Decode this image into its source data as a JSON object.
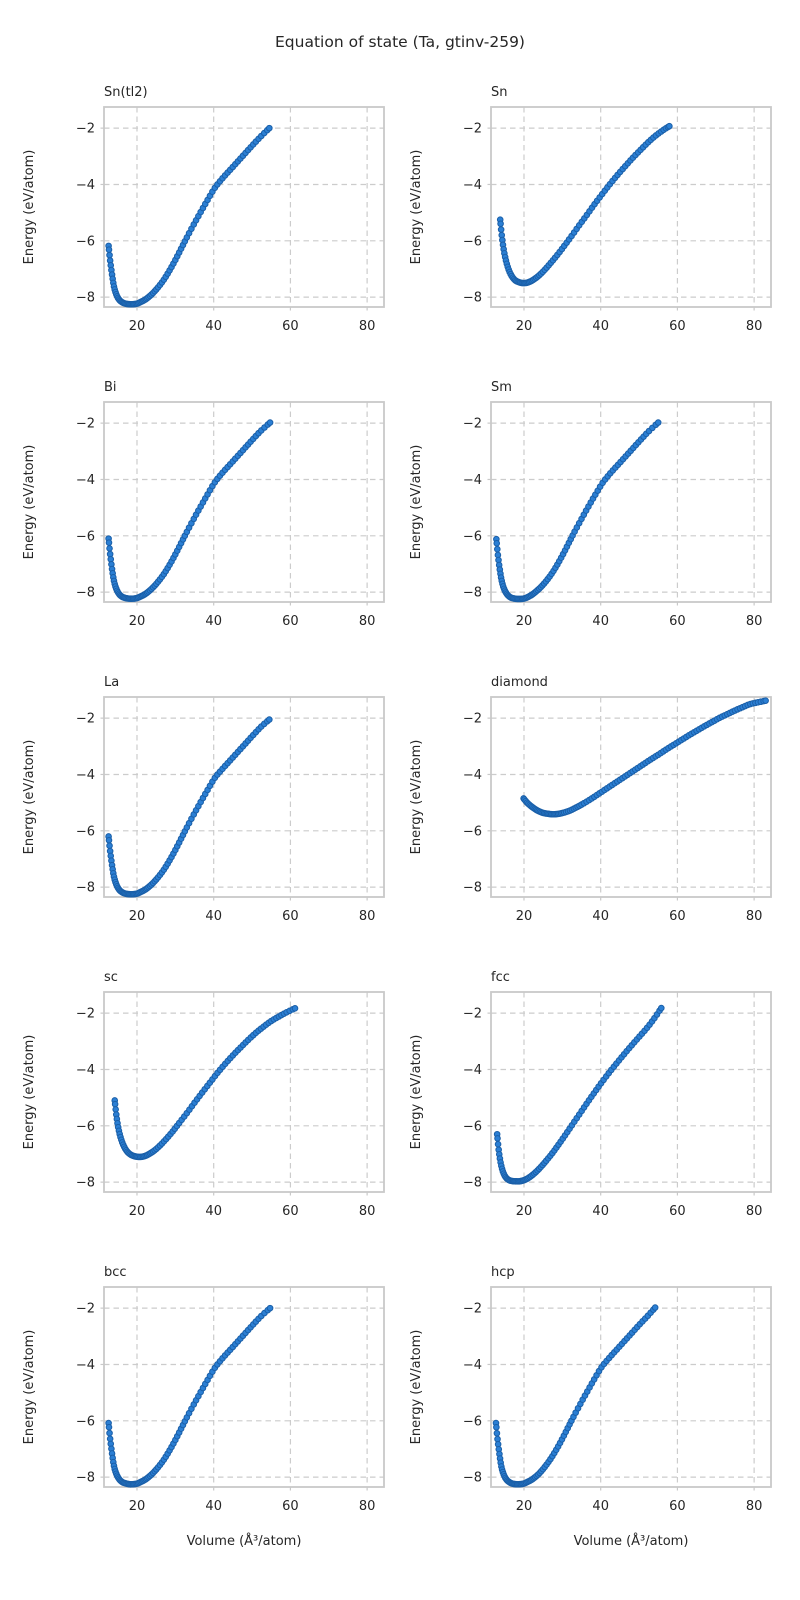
{
  "title": "Equation of state (Ta, gtinv-259)",
  "xlabel": "Volume (Å³/atom)",
  "ylabel": "Energy (eV/atom)",
  "axes": {
    "x_ticks": [
      20,
      40,
      60,
      80
    ],
    "y_ticks": [
      -2,
      -4,
      -6,
      -8
    ],
    "x_range": [
      11.4,
      84.4
    ],
    "y_range": [
      -8.35,
      -1.25
    ],
    "grid": "dashed",
    "legend": "none"
  },
  "colors": {
    "marker_fill": "#2b7fd4",
    "marker_edge": "#1a5fa8",
    "grid": "#cccccc",
    "spine": "#c9c9c9",
    "text": "#262626",
    "background": "#ffffff"
  },
  "chart_data": [
    {
      "type": "scatter",
      "label": "Sn(tl2)",
      "points": [
        [
          12.6,
          -6.18
        ],
        [
          13.0,
          -6.7
        ],
        [
          13.5,
          -7.2
        ],
        [
          14.0,
          -7.62
        ],
        [
          14.6,
          -7.9
        ],
        [
          15.3,
          -8.08
        ],
        [
          16.1,
          -8.18
        ],
        [
          17.0,
          -8.23
        ],
        [
          18.0,
          -8.25
        ],
        [
          19.0,
          -8.25
        ],
        [
          20.0,
          -8.23
        ],
        [
          21.0,
          -8.17
        ],
        [
          22.0,
          -8.1
        ],
        [
          23.0,
          -8.0
        ],
        [
          24.2,
          -7.85
        ],
        [
          25.5,
          -7.65
        ],
        [
          27.0,
          -7.38
        ],
        [
          28.5,
          -7.05
        ],
        [
          30.0,
          -6.68
        ],
        [
          31.5,
          -6.28
        ],
        [
          33.0,
          -5.88
        ],
        [
          34.8,
          -5.42
        ],
        [
          36.6,
          -4.98
        ],
        [
          38.4,
          -4.55
        ],
        [
          40.3,
          -4.12
        ],
        [
          42.3,
          -3.78
        ],
        [
          44.3,
          -3.48
        ],
        [
          46.3,
          -3.18
        ],
        [
          48.3,
          -2.88
        ],
        [
          50.3,
          -2.58
        ],
        [
          52.4,
          -2.28
        ],
        [
          54.5,
          -2.0
        ]
      ]
    },
    {
      "type": "scatter",
      "label": "Sn",
      "points": [
        [
          13.8,
          -5.25
        ],
        [
          14.2,
          -5.8
        ],
        [
          14.7,
          -6.3
        ],
        [
          15.3,
          -6.7
        ],
        [
          16.0,
          -7.02
        ],
        [
          16.8,
          -7.25
        ],
        [
          17.7,
          -7.4
        ],
        [
          18.7,
          -7.47
        ],
        [
          19.7,
          -7.5
        ],
        [
          20.7,
          -7.49
        ],
        [
          21.7,
          -7.44
        ],
        [
          22.8,
          -7.35
        ],
        [
          24.0,
          -7.22
        ],
        [
          25.4,
          -7.03
        ],
        [
          27.0,
          -6.78
        ],
        [
          28.7,
          -6.5
        ],
        [
          30.5,
          -6.18
        ],
        [
          32.4,
          -5.83
        ],
        [
          34.4,
          -5.45
        ],
        [
          36.4,
          -5.08
        ],
        [
          38.4,
          -4.7
        ],
        [
          40.4,
          -4.34
        ],
        [
          42.4,
          -3.99
        ],
        [
          44.4,
          -3.66
        ],
        [
          46.4,
          -3.35
        ],
        [
          48.4,
          -3.05
        ],
        [
          50.4,
          -2.77
        ],
        [
          52.4,
          -2.5
        ],
        [
          54.4,
          -2.26
        ],
        [
          56.4,
          -2.06
        ],
        [
          57.9,
          -1.93
        ]
      ]
    },
    {
      "type": "scatter",
      "label": "Bi",
      "points": [
        [
          12.6,
          -6.1
        ],
        [
          13.0,
          -6.65
        ],
        [
          13.5,
          -7.18
        ],
        [
          14.0,
          -7.6
        ],
        [
          14.6,
          -7.88
        ],
        [
          15.3,
          -8.06
        ],
        [
          16.1,
          -8.16
        ],
        [
          17.0,
          -8.21
        ],
        [
          18.0,
          -8.23
        ],
        [
          19.0,
          -8.23
        ],
        [
          20.0,
          -8.21
        ],
        [
          21.0,
          -8.15
        ],
        [
          22.0,
          -8.08
        ],
        [
          23.0,
          -7.98
        ],
        [
          24.2,
          -7.83
        ],
        [
          25.5,
          -7.63
        ],
        [
          27.0,
          -7.36
        ],
        [
          28.5,
          -7.03
        ],
        [
          30.0,
          -6.66
        ],
        [
          31.5,
          -6.26
        ],
        [
          33.0,
          -5.86
        ],
        [
          34.8,
          -5.4
        ],
        [
          36.6,
          -4.96
        ],
        [
          38.4,
          -4.53
        ],
        [
          40.3,
          -4.1
        ],
        [
          42.3,
          -3.76
        ],
        [
          44.3,
          -3.46
        ],
        [
          46.3,
          -3.16
        ],
        [
          48.3,
          -2.86
        ],
        [
          50.3,
          -2.56
        ],
        [
          52.4,
          -2.26
        ],
        [
          54.7,
          -1.98
        ]
      ]
    },
    {
      "type": "scatter",
      "label": "Sm",
      "points": [
        [
          12.8,
          -6.12
        ],
        [
          13.2,
          -6.68
        ],
        [
          13.7,
          -7.2
        ],
        [
          14.2,
          -7.6
        ],
        [
          14.8,
          -7.88
        ],
        [
          15.5,
          -8.06
        ],
        [
          16.3,
          -8.17
        ],
        [
          17.2,
          -8.22
        ],
        [
          18.2,
          -8.24
        ],
        [
          19.2,
          -8.24
        ],
        [
          20.2,
          -8.22
        ],
        [
          21.2,
          -8.16
        ],
        [
          22.2,
          -8.08
        ],
        [
          23.2,
          -7.97
        ],
        [
          24.4,
          -7.82
        ],
        [
          25.7,
          -7.62
        ],
        [
          27.2,
          -7.35
        ],
        [
          28.7,
          -7.02
        ],
        [
          30.2,
          -6.65
        ],
        [
          31.7,
          -6.25
        ],
        [
          33.2,
          -5.85
        ],
        [
          35.0,
          -5.4
        ],
        [
          36.8,
          -4.96
        ],
        [
          38.6,
          -4.54
        ],
        [
          40.5,
          -4.12
        ],
        [
          42.5,
          -3.78
        ],
        [
          44.5,
          -3.48
        ],
        [
          46.5,
          -3.18
        ],
        [
          48.5,
          -2.88
        ],
        [
          50.5,
          -2.58
        ],
        [
          52.6,
          -2.28
        ],
        [
          55.0,
          -1.98
        ]
      ]
    },
    {
      "type": "scatter",
      "label": "La",
      "points": [
        [
          12.6,
          -6.2
        ],
        [
          13.0,
          -6.72
        ],
        [
          13.5,
          -7.22
        ],
        [
          14.0,
          -7.63
        ],
        [
          14.6,
          -7.9
        ],
        [
          15.3,
          -8.08
        ],
        [
          16.1,
          -8.18
        ],
        [
          17.0,
          -8.23
        ],
        [
          18.0,
          -8.25
        ],
        [
          19.0,
          -8.25
        ],
        [
          20.0,
          -8.23
        ],
        [
          21.0,
          -8.17
        ],
        [
          22.0,
          -8.1
        ],
        [
          23.0,
          -8.0
        ],
        [
          24.2,
          -7.85
        ],
        [
          25.5,
          -7.65
        ],
        [
          27.0,
          -7.38
        ],
        [
          28.5,
          -7.05
        ],
        [
          30.0,
          -6.68
        ],
        [
          31.5,
          -6.28
        ],
        [
          33.0,
          -5.88
        ],
        [
          34.8,
          -5.42
        ],
        [
          36.6,
          -4.98
        ],
        [
          38.4,
          -4.55
        ],
        [
          40.3,
          -4.12
        ],
        [
          42.3,
          -3.8
        ],
        [
          44.3,
          -3.5
        ],
        [
          46.3,
          -3.2
        ],
        [
          48.3,
          -2.9
        ],
        [
          50.3,
          -2.6
        ],
        [
          52.4,
          -2.3
        ],
        [
          54.5,
          -2.05
        ]
      ]
    },
    {
      "type": "scatter",
      "label": "diamond",
      "points": [
        [
          19.9,
          -4.85
        ],
        [
          20.8,
          -5.0
        ],
        [
          21.8,
          -5.12
        ],
        [
          22.8,
          -5.22
        ],
        [
          23.8,
          -5.3
        ],
        [
          24.9,
          -5.36
        ],
        [
          26.0,
          -5.39
        ],
        [
          27.1,
          -5.41
        ],
        [
          28.2,
          -5.41
        ],
        [
          29.3,
          -5.39
        ],
        [
          30.5,
          -5.35
        ],
        [
          32.0,
          -5.28
        ],
        [
          33.5,
          -5.18
        ],
        [
          35.0,
          -5.07
        ],
        [
          37.0,
          -4.91
        ],
        [
          39.0,
          -4.73
        ],
        [
          41.0,
          -4.55
        ],
        [
          43.0,
          -4.37
        ],
        [
          45.0,
          -4.19
        ],
        [
          47.0,
          -4.01
        ],
        [
          49.0,
          -3.83
        ],
        [
          51.0,
          -3.65
        ],
        [
          53.0,
          -3.47
        ],
        [
          55.0,
          -3.3
        ],
        [
          57.0,
          -3.12
        ],
        [
          59.0,
          -2.95
        ],
        [
          61.0,
          -2.78
        ],
        [
          63.0,
          -2.61
        ],
        [
          65.0,
          -2.45
        ],
        [
          67.0,
          -2.29
        ],
        [
          69.0,
          -2.14
        ],
        [
          71.0,
          -1.99
        ],
        [
          73.0,
          -1.86
        ],
        [
          75.0,
          -1.73
        ],
        [
          77.0,
          -1.61
        ],
        [
          79.0,
          -1.5
        ],
        [
          81.0,
          -1.44
        ],
        [
          83.0,
          -1.38
        ]
      ]
    },
    {
      "type": "scatter",
      "label": "sc",
      "points": [
        [
          14.2,
          -5.1
        ],
        [
          14.6,
          -5.6
        ],
        [
          15.1,
          -6.05
        ],
        [
          15.7,
          -6.4
        ],
        [
          16.4,
          -6.67
        ],
        [
          17.2,
          -6.87
        ],
        [
          18.1,
          -7.0
        ],
        [
          19.1,
          -7.07
        ],
        [
          20.1,
          -7.1
        ],
        [
          21.2,
          -7.1
        ],
        [
          22.3,
          -7.06
        ],
        [
          23.4,
          -6.98
        ],
        [
          24.6,
          -6.87
        ],
        [
          26.0,
          -6.7
        ],
        [
          27.6,
          -6.47
        ],
        [
          29.3,
          -6.2
        ],
        [
          31.0,
          -5.9
        ],
        [
          33.0,
          -5.55
        ],
        [
          35.0,
          -5.18
        ],
        [
          37.0,
          -4.82
        ],
        [
          39.0,
          -4.47
        ],
        [
          41.0,
          -4.12
        ],
        [
          43.0,
          -3.8
        ],
        [
          45.0,
          -3.5
        ],
        [
          47.0,
          -3.22
        ],
        [
          49.0,
          -2.95
        ],
        [
          51.0,
          -2.7
        ],
        [
          53.0,
          -2.48
        ],
        [
          55.0,
          -2.28
        ],
        [
          57.0,
          -2.12
        ],
        [
          59.0,
          -1.97
        ],
        [
          61.2,
          -1.83
        ]
      ]
    },
    {
      "type": "scatter",
      "label": "fcc",
      "points": [
        [
          13.0,
          -6.3
        ],
        [
          13.4,
          -6.85
        ],
        [
          13.9,
          -7.3
        ],
        [
          14.5,
          -7.62
        ],
        [
          15.2,
          -7.82
        ],
        [
          16.0,
          -7.92
        ],
        [
          16.9,
          -7.96
        ],
        [
          17.8,
          -7.97
        ],
        [
          18.8,
          -7.97
        ],
        [
          19.8,
          -7.94
        ],
        [
          20.8,
          -7.88
        ],
        [
          21.9,
          -7.78
        ],
        [
          23.1,
          -7.64
        ],
        [
          24.4,
          -7.46
        ],
        [
          25.8,
          -7.24
        ],
        [
          27.4,
          -6.97
        ],
        [
          29.0,
          -6.67
        ],
        [
          30.7,
          -6.34
        ],
        [
          32.5,
          -5.98
        ],
        [
          34.4,
          -5.6
        ],
        [
          36.3,
          -5.22
        ],
        [
          38.2,
          -4.85
        ],
        [
          40.1,
          -4.49
        ],
        [
          42.1,
          -4.13
        ],
        [
          44.1,
          -3.79
        ],
        [
          46.1,
          -3.46
        ],
        [
          48.1,
          -3.14
        ],
        [
          50.1,
          -2.83
        ],
        [
          52.1,
          -2.52
        ],
        [
          54.0,
          -2.18
        ],
        [
          55.8,
          -1.82
        ]
      ]
    },
    {
      "type": "scatter",
      "label": "bcc",
      "points": [
        [
          12.6,
          -6.08
        ],
        [
          13.0,
          -6.64
        ],
        [
          13.5,
          -7.16
        ],
        [
          14.0,
          -7.6
        ],
        [
          14.6,
          -7.88
        ],
        [
          15.3,
          -8.06
        ],
        [
          16.1,
          -8.17
        ],
        [
          17.0,
          -8.22
        ],
        [
          18.0,
          -8.25
        ],
        [
          19.0,
          -8.25
        ],
        [
          20.0,
          -8.23
        ],
        [
          21.0,
          -8.17
        ],
        [
          22.0,
          -8.1
        ],
        [
          23.0,
          -8.0
        ],
        [
          24.2,
          -7.85
        ],
        [
          25.5,
          -7.65
        ],
        [
          27.0,
          -7.38
        ],
        [
          28.5,
          -7.05
        ],
        [
          30.0,
          -6.68
        ],
        [
          31.5,
          -6.28
        ],
        [
          33.0,
          -5.88
        ],
        [
          34.8,
          -5.42
        ],
        [
          36.6,
          -4.98
        ],
        [
          38.4,
          -4.55
        ],
        [
          40.3,
          -4.12
        ],
        [
          42.3,
          -3.78
        ],
        [
          44.3,
          -3.48
        ],
        [
          46.3,
          -3.18
        ],
        [
          48.3,
          -2.88
        ],
        [
          50.3,
          -2.58
        ],
        [
          52.4,
          -2.28
        ],
        [
          54.7,
          -2.0
        ]
      ]
    },
    {
      "type": "scatter",
      "label": "hcp",
      "points": [
        [
          12.7,
          -6.08
        ],
        [
          13.1,
          -6.65
        ],
        [
          13.6,
          -7.18
        ],
        [
          14.1,
          -7.62
        ],
        [
          14.7,
          -7.9
        ],
        [
          15.4,
          -8.08
        ],
        [
          16.2,
          -8.18
        ],
        [
          17.0,
          -8.23
        ],
        [
          17.9,
          -8.25
        ],
        [
          18.9,
          -8.25
        ],
        [
          19.9,
          -8.23
        ],
        [
          20.9,
          -8.17
        ],
        [
          21.9,
          -8.1
        ],
        [
          22.9,
          -8.0
        ],
        [
          24.1,
          -7.85
        ],
        [
          25.4,
          -7.64
        ],
        [
          26.9,
          -7.36
        ],
        [
          28.4,
          -7.03
        ],
        [
          29.9,
          -6.66
        ],
        [
          31.4,
          -6.26
        ],
        [
          32.9,
          -5.86
        ],
        [
          34.7,
          -5.4
        ],
        [
          36.5,
          -4.96
        ],
        [
          38.3,
          -4.53
        ],
        [
          40.2,
          -4.1
        ],
        [
          42.2,
          -3.77
        ],
        [
          44.2,
          -3.47
        ],
        [
          46.2,
          -3.17
        ],
        [
          48.2,
          -2.87
        ],
        [
          50.2,
          -2.57
        ],
        [
          52.3,
          -2.27
        ],
        [
          54.2,
          -1.98
        ]
      ]
    }
  ]
}
